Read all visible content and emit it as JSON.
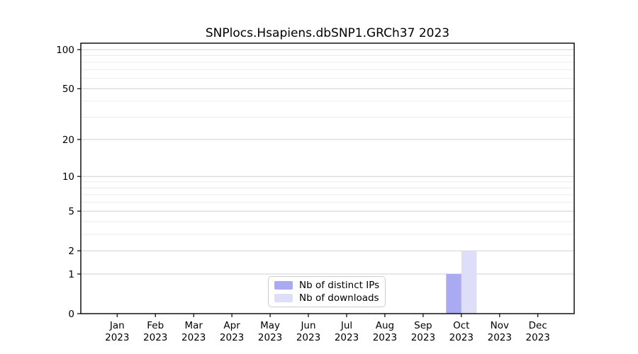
{
  "chart_data": {
    "type": "bar",
    "title": "SNPlocs.Hsapiens.dbSNP1.GRCh37 2023",
    "categories": [
      "Jan",
      "Feb",
      "Mar",
      "Apr",
      "May",
      "Jun",
      "Jul",
      "Aug",
      "Sep",
      "Oct",
      "Nov",
      "Dec"
    ],
    "category_year": "2023",
    "series": [
      {
        "name": "Nb of distinct IPs",
        "color": "#aaaaf2",
        "values": [
          0,
          0,
          0,
          0,
          0,
          0,
          0,
          0,
          0,
          1,
          0,
          0
        ]
      },
      {
        "name": "Nb of downloads",
        "color": "#dedef8",
        "values": [
          0,
          0,
          0,
          0,
          0,
          0,
          0,
          0,
          0,
          2,
          0,
          0
        ]
      }
    ],
    "yscale": "log1p",
    "ylim": [
      0,
      112
    ],
    "yticks": [
      0,
      1,
      2,
      5,
      10,
      20,
      50,
      100
    ],
    "yticks_minor": [
      3,
      4,
      6,
      7,
      8,
      9,
      30,
      40,
      60,
      70,
      80,
      90
    ],
    "grid": true,
    "legend_position": "lower center",
    "colors": {
      "major_grid": "#cfcfcf",
      "minor_grid": "#ebebeb",
      "axis": "#000000",
      "background": "#ffffff",
      "legend_border": "#cccccc"
    }
  }
}
